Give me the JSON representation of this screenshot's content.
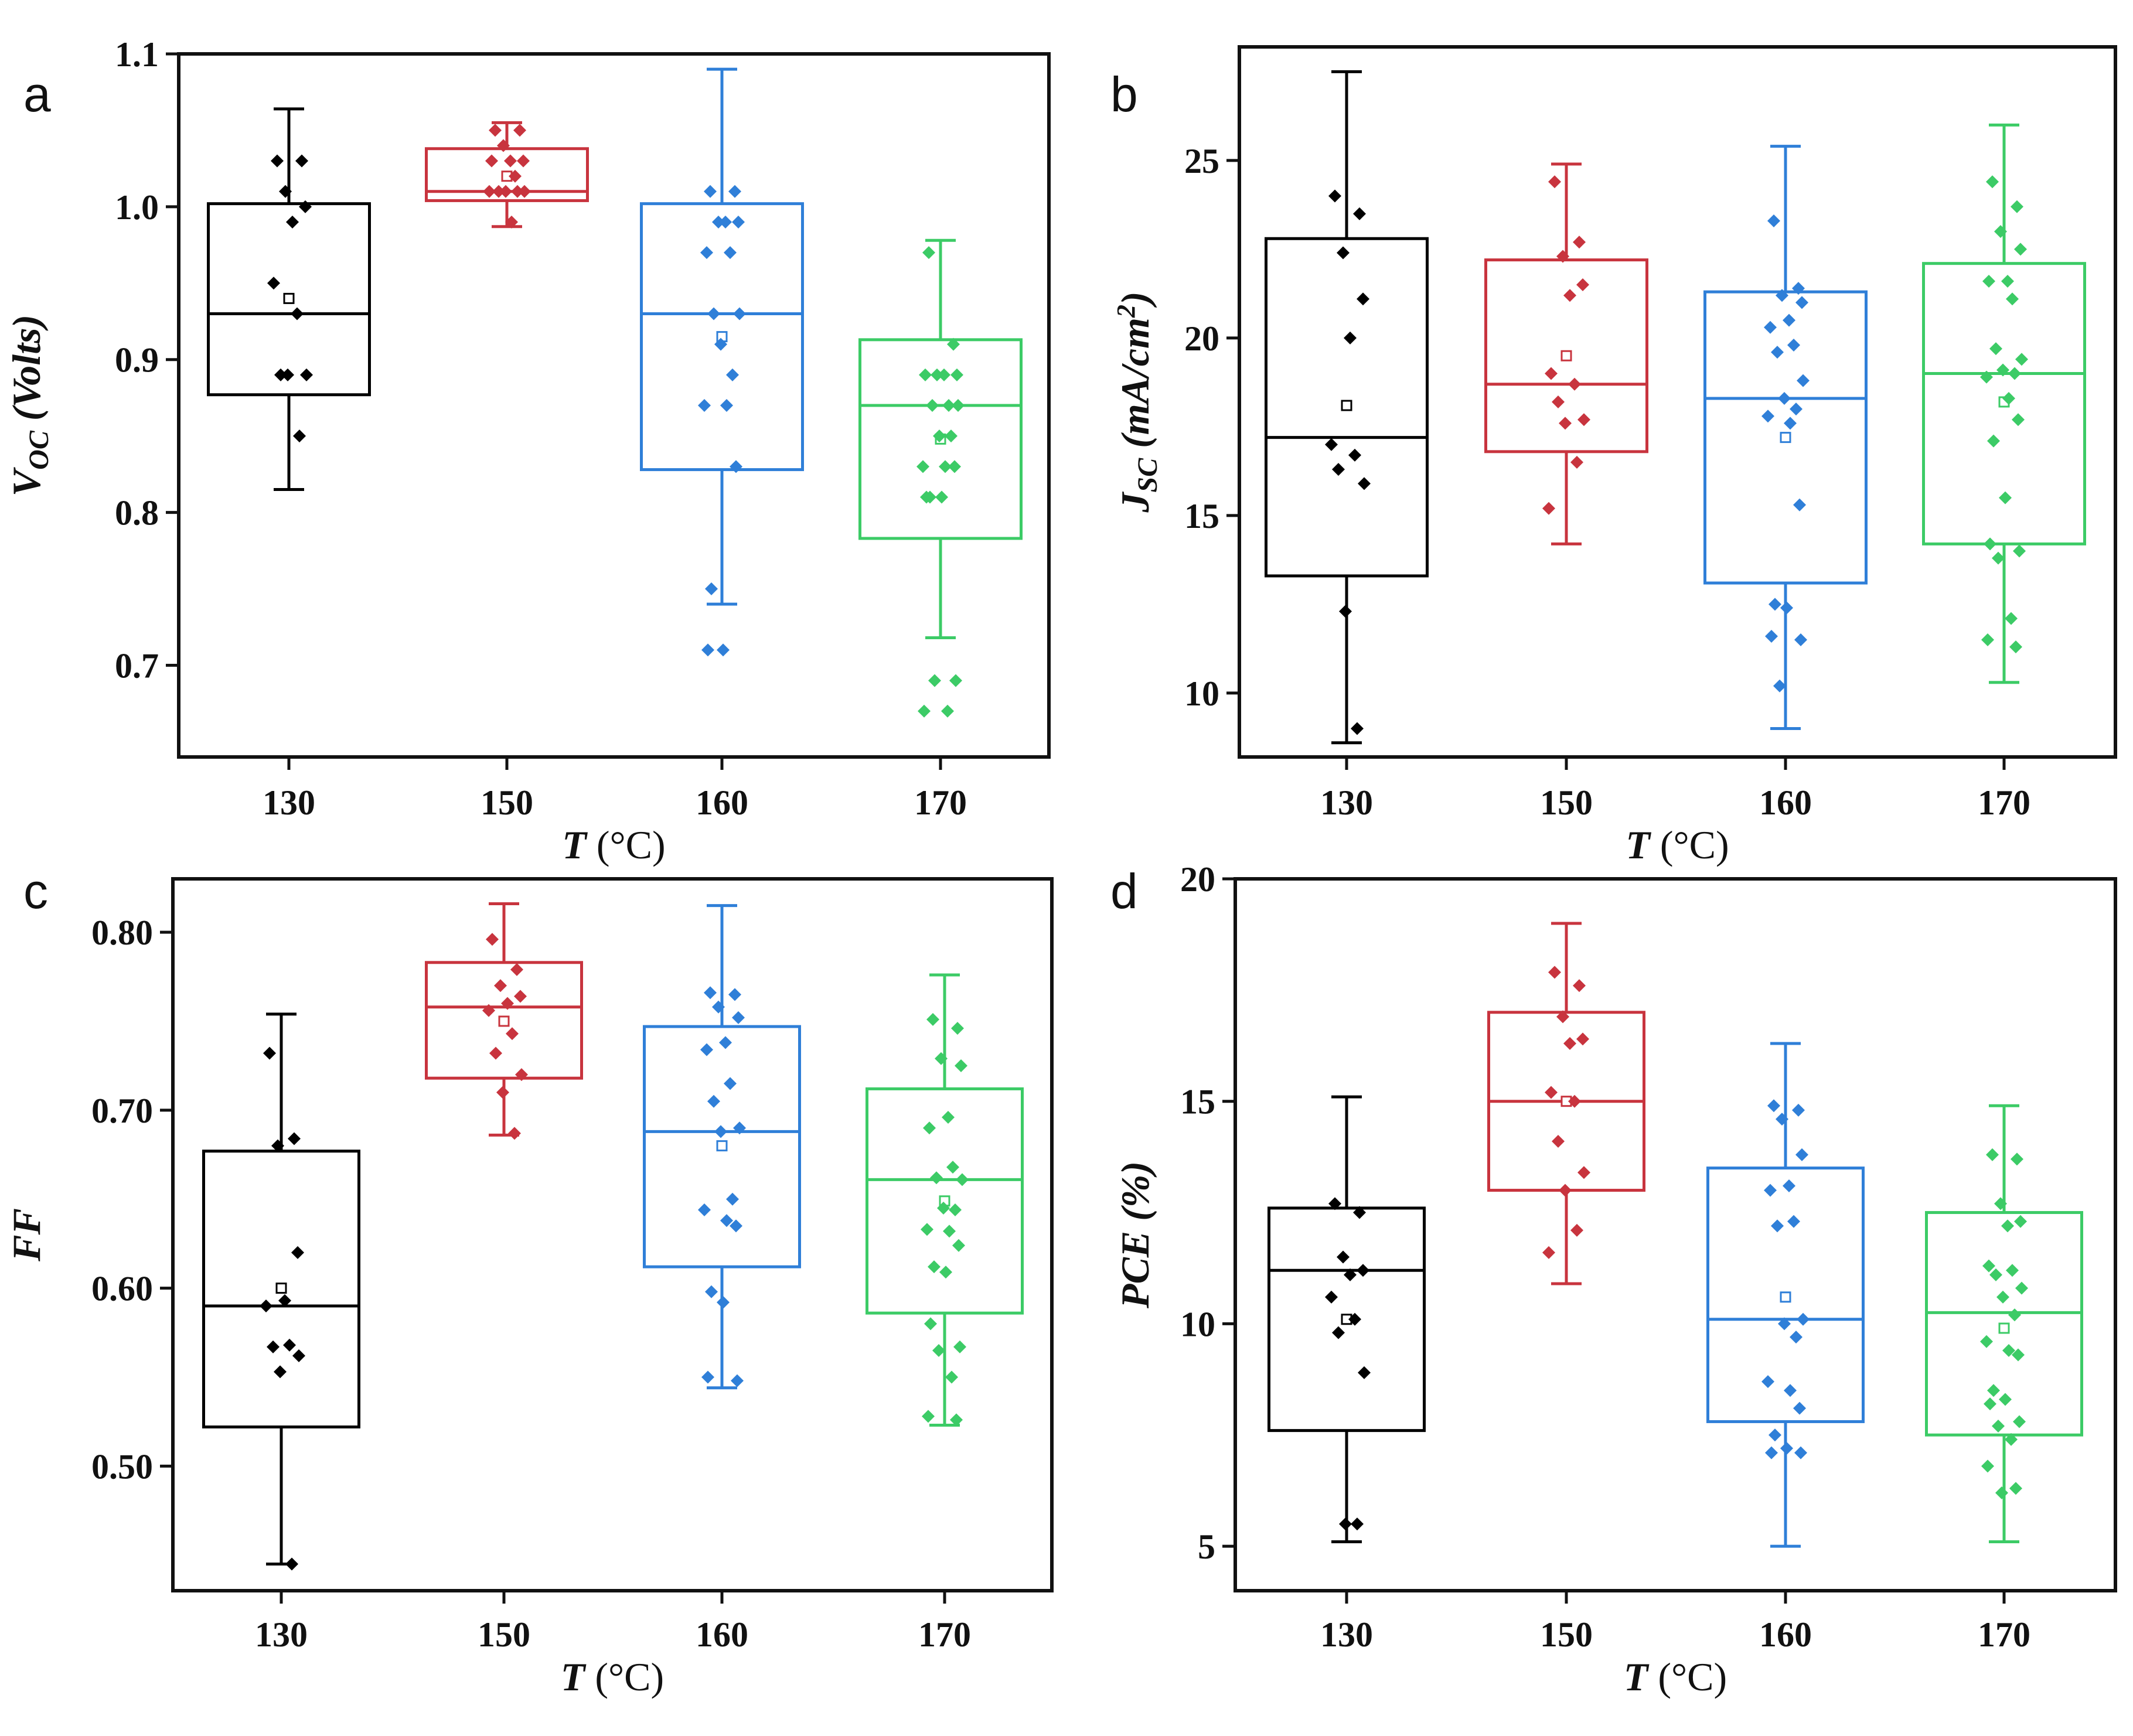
{
  "chart_data": [
    {
      "panel": "a",
      "type": "box",
      "ylabel_main": "V",
      "ylabel_sub": "OC",
      "ylabel_tail": " (Volts)",
      "ylabel_sup": "",
      "ylabel_close": "",
      "xlabel_var": "T",
      "xlabel_unit": " (°C)",
      "ylim": [
        0.64,
        1.1
      ],
      "yticks": [
        0.7,
        0.8,
        0.9,
        1.0,
        1.1
      ],
      "yticklabels": [
        "0.7",
        "0.8",
        "0.9",
        "1.0",
        "1.1"
      ],
      "categories": [
        "130",
        "150",
        "160",
        "170"
      ],
      "colors": [
        "#000000",
        "#c8343e",
        "#2f7fd8",
        "#3ccb66"
      ],
      "boxes": [
        {
          "q1": 0.877,
          "median": 0.93,
          "q3": 1.002,
          "whisker_low": 0.815,
          "whisker_high": 1.064,
          "mean": 0.94,
          "points": [
            1.03,
            1.03,
            1.01,
            1.0,
            0.99,
            0.95,
            0.93,
            0.89,
            0.89,
            0.89,
            0.85
          ]
        },
        {
          "q1": 1.004,
          "median": 1.01,
          "q3": 1.038,
          "whisker_low": 0.987,
          "whisker_high": 1.055,
          "mean": 1.02,
          "points": [
            1.05,
            1.05,
            1.04,
            1.03,
            1.03,
            1.03,
            1.02,
            1.01,
            1.01,
            1.01,
            1.01,
            1.01,
            0.99
          ]
        },
        {
          "q1": 0.828,
          "median": 0.93,
          "q3": 1.002,
          "whisker_low": 0.74,
          "whisker_high": 1.09,
          "mean": 0.915,
          "points": [
            1.01,
            1.01,
            0.99,
            0.99,
            0.99,
            0.97,
            0.97,
            0.93,
            0.93,
            0.91,
            0.89,
            0.87,
            0.87,
            0.83,
            0.75,
            0.71,
            0.71
          ]
        },
        {
          "q1": 0.783,
          "median": 0.87,
          "q3": 0.913,
          "whisker_low": 0.718,
          "whisker_high": 0.978,
          "mean": 0.848,
          "points": [
            0.97,
            0.91,
            0.89,
            0.89,
            0.89,
            0.89,
            0.87,
            0.87,
            0.87,
            0.85,
            0.85,
            0.83,
            0.83,
            0.83,
            0.81,
            0.81,
            0.81,
            0.69,
            0.69,
            0.67,
            0.67
          ]
        }
      ]
    },
    {
      "panel": "b",
      "type": "box",
      "ylabel_main": "J",
      "ylabel_sub": "SC",
      "ylabel_tail": " (mA/cm",
      "ylabel_sup": "2",
      "ylabel_close": ")",
      "xlabel_var": "T",
      "xlabel_unit": " (°C)",
      "ylim": [
        8.2,
        28.2
      ],
      "yticks": [
        10,
        15,
        20,
        25
      ],
      "yticklabels": [
        "10",
        "15",
        "20",
        "25"
      ],
      "categories": [
        "130",
        "150",
        "160",
        "170"
      ],
      "colors": [
        "#000000",
        "#c8343e",
        "#2f7fd8",
        "#3ccb66"
      ],
      "boxes": [
        {
          "q1": 13.3,
          "median": 17.2,
          "q3": 22.8,
          "whisker_low": 8.6,
          "whisker_high": 27.5,
          "mean": 18.1,
          "points": [
            24.0,
            23.5,
            22.4,
            21.1,
            20.0,
            17.0,
            16.7,
            16.3,
            15.9,
            12.3,
            9.0
          ]
        },
        {
          "q1": 16.8,
          "median": 18.7,
          "q3": 22.2,
          "whisker_low": 14.2,
          "whisker_high": 24.9,
          "mean": 19.5,
          "points": [
            24.4,
            22.7,
            22.3,
            21.5,
            21.2,
            19.0,
            18.7,
            18.2,
            17.7,
            17.6,
            16.5,
            15.2
          ]
        },
        {
          "q1": 13.1,
          "median": 18.3,
          "q3": 21.3,
          "whisker_low": 9.0,
          "whisker_high": 25.4,
          "mean": 17.2,
          "points": [
            23.3,
            21.4,
            21.2,
            21.0,
            20.5,
            20.3,
            19.8,
            19.6,
            18.8,
            18.3,
            18.0,
            17.8,
            17.6,
            15.3,
            12.5,
            12.4,
            11.6,
            11.5,
            10.2
          ]
        },
        {
          "q1": 14.2,
          "median": 19.0,
          "q3": 22.1,
          "whisker_low": 10.3,
          "whisker_high": 26.0,
          "mean": 18.2,
          "points": [
            24.4,
            23.7,
            23.0,
            22.5,
            21.6,
            21.6,
            21.1,
            19.7,
            19.4,
            19.1,
            19.0,
            18.9,
            18.3,
            17.7,
            17.1,
            15.5,
            14.2,
            14.0,
            13.8,
            12.1,
            11.5,
            11.3
          ]
        }
      ]
    },
    {
      "panel": "c",
      "type": "box",
      "ylabel_main": "FF",
      "ylabel_sub": "",
      "ylabel_tail": "",
      "ylabel_sup": "",
      "ylabel_close": "",
      "xlabel_var": "T",
      "xlabel_unit": " (°C)",
      "ylim": [
        0.43,
        0.83
      ],
      "yticks": [
        0.5,
        0.6,
        0.7,
        0.8
      ],
      "yticklabels": [
        "0.50",
        "0.60",
        "0.70",
        "0.80"
      ],
      "categories": [
        "130",
        "150",
        "160",
        "170"
      ],
      "colors": [
        "#000000",
        "#c8343e",
        "#2f7fd8",
        "#3ccb66"
      ],
      "boxes": [
        {
          "q1": 0.522,
          "median": 0.59,
          "q3": 0.677,
          "whisker_low": 0.445,
          "whisker_high": 0.754,
          "mean": 0.6,
          "points": [
            0.732,
            0.684,
            0.68,
            0.62,
            0.593,
            0.59,
            0.568,
            0.567,
            0.562,
            0.553,
            0.445
          ]
        },
        {
          "q1": 0.718,
          "median": 0.758,
          "q3": 0.783,
          "whisker_low": 0.686,
          "whisker_high": 0.816,
          "mean": 0.75,
          "points": [
            0.796,
            0.779,
            0.77,
            0.764,
            0.76,
            0.756,
            0.743,
            0.732,
            0.72,
            0.71,
            0.687
          ]
        },
        {
          "q1": 0.612,
          "median": 0.688,
          "q3": 0.747,
          "whisker_low": 0.544,
          "whisker_high": 0.815,
          "mean": 0.68,
          "points": [
            0.766,
            0.765,
            0.758,
            0.752,
            0.738,
            0.734,
            0.715,
            0.705,
            0.69,
            0.688,
            0.65,
            0.644,
            0.638,
            0.635,
            0.598,
            0.592,
            0.55,
            0.548
          ]
        },
        {
          "q1": 0.586,
          "median": 0.661,
          "q3": 0.712,
          "whisker_low": 0.523,
          "whisker_high": 0.776,
          "mean": 0.649,
          "points": [
            0.751,
            0.746,
            0.729,
            0.725,
            0.696,
            0.69,
            0.668,
            0.662,
            0.661,
            0.645,
            0.644,
            0.633,
            0.632,
            0.624,
            0.612,
            0.609,
            0.58,
            0.567,
            0.565,
            0.55,
            0.528,
            0.526
          ]
        }
      ]
    },
    {
      "panel": "d",
      "type": "box",
      "ylabel_main": "PCE",
      "ylabel_sub": "",
      "ylabel_tail": " (%)",
      "ylabel_sup": "",
      "ylabel_close": "",
      "xlabel_var": "T",
      "xlabel_unit": " (°C)",
      "ylim": [
        4.0,
        20.0
      ],
      "yticks": [
        5,
        10,
        15,
        20
      ],
      "yticklabels": [
        "5",
        "10",
        "15",
        "20"
      ],
      "categories": [
        "130",
        "150",
        "160",
        "170"
      ],
      "colors": [
        "#000000",
        "#c8343e",
        "#2f7fd8",
        "#3ccb66"
      ],
      "boxes": [
        {
          "q1": 7.6,
          "median": 11.2,
          "q3": 12.6,
          "whisker_low": 5.1,
          "whisker_high": 15.1,
          "mean": 10.1,
          "points": [
            12.7,
            12.5,
            11.5,
            11.2,
            11.1,
            10.6,
            10.1,
            9.8,
            8.9,
            5.5,
            5.5
          ]
        },
        {
          "q1": 13.0,
          "median": 15.0,
          "q3": 17.0,
          "whisker_low": 10.9,
          "whisker_high": 19.0,
          "mean": 15.0,
          "points": [
            17.9,
            17.6,
            16.9,
            16.4,
            16.3,
            15.2,
            15.0,
            14.1,
            13.4,
            13.0,
            12.1,
            11.6
          ]
        },
        {
          "q1": 7.8,
          "median": 10.1,
          "q3": 13.5,
          "whisker_low": 5.0,
          "whisker_high": 16.3,
          "mean": 10.6,
          "points": [
            14.9,
            14.8,
            14.6,
            13.8,
            13.1,
            13.0,
            12.3,
            12.2,
            10.1,
            10.0,
            9.7,
            8.7,
            8.5,
            8.1,
            7.5,
            7.2,
            7.1,
            7.1
          ]
        },
        {
          "q1": 7.5,
          "median": 10.25,
          "q3": 12.5,
          "whisker_low": 5.1,
          "whisker_high": 14.9,
          "mean": 9.9,
          "points": [
            13.8,
            13.7,
            12.7,
            12.3,
            12.2,
            11.3,
            11.2,
            11.1,
            10.8,
            10.6,
            10.2,
            9.6,
            9.4,
            9.3,
            8.5,
            8.3,
            8.2,
            7.8,
            7.7,
            7.4,
            6.8,
            6.3,
            6.2
          ]
        }
      ]
    }
  ]
}
